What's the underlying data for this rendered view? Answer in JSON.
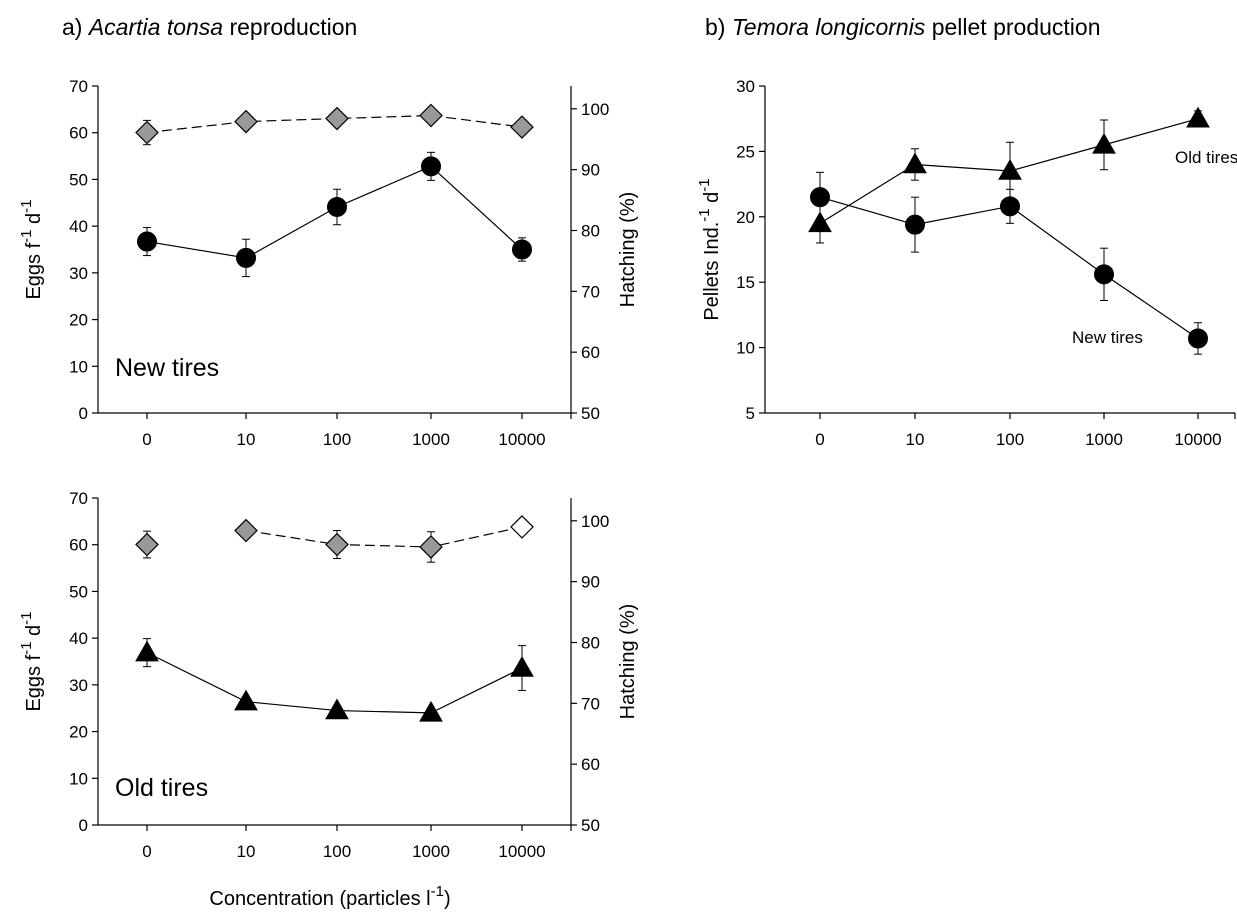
{
  "figure": {
    "panel_a_title": {
      "prefix": "a) ",
      "species": "Acartia tonsa",
      "suffix": " reproduction"
    },
    "panel_b_title": {
      "prefix": "b) ",
      "species": "Temora longicornis",
      "suffix": " pellet production"
    },
    "shared_xlabel": {
      "text": "Concentration (particles l",
      "sup": "-1",
      "close": ")"
    }
  },
  "chart_data": [
    {
      "id": "a-top",
      "type": "line",
      "inset_label": "New tires",
      "categories": [
        "0",
        "10",
        "100",
        "1000",
        "10000"
      ],
      "ylabel_left": {
        "base": "Eggs f",
        "sup1": "-1",
        "mid": " d",
        "sup2": "-1"
      },
      "ylabel_right": "Hatching (%)",
      "ylim_left": [
        0,
        70
      ],
      "yticks_left": [
        0,
        10,
        20,
        30,
        40,
        50,
        60,
        70
      ],
      "ylim_right": [
        50,
        103.75
      ],
      "yticks_right": [
        50,
        60,
        70,
        80,
        90,
        100
      ],
      "series": [
        {
          "axis": "right",
          "marker": "diamond",
          "fill": "#999999",
          "line": "dashed",
          "values": [
            96.1,
            97.9,
            98.4,
            98.9,
            97.0
          ],
          "err": [
            2.0,
            0,
            0,
            0,
            0
          ]
        },
        {
          "axis": "left",
          "marker": "circle",
          "fill": "#000000",
          "line": "solid",
          "values": [
            36.7,
            33.2,
            44.1,
            52.8,
            35.0
          ],
          "err": [
            3.0,
            4.0,
            3.8,
            3.0,
            2.5
          ]
        }
      ]
    },
    {
      "id": "a-bottom",
      "type": "line",
      "inset_label": "Old tires",
      "categories": [
        "0",
        "10",
        "100",
        "1000",
        "10000"
      ],
      "ylabel_left": {
        "base": "Eggs f",
        "sup1": "-1",
        "mid": " d",
        "sup2": "-1"
      },
      "ylabel_right": "Hatching (%)",
      "ylim_left": [
        0,
        70
      ],
      "yticks_left": [
        0,
        10,
        20,
        30,
        40,
        50,
        60,
        70
      ],
      "ylim_right": [
        50,
        103.75
      ],
      "yticks_right": [
        50,
        60,
        70,
        80,
        90,
        100
      ],
      "series": [
        {
          "axis": "right",
          "marker": "diamond",
          "fill": "#999999",
          "line": "dashed",
          "values": [
            96.1,
            98.4,
            96.1,
            95.7,
            99.0
          ],
          "open_last": true,
          "segments": [
            [
              1,
              2,
              3,
              4
            ]
          ],
          "err": [
            2.2,
            0,
            2.3,
            2.5,
            0
          ]
        },
        {
          "axis": "left",
          "marker": "triangle",
          "fill": "#000000",
          "line": "solid",
          "values": [
            36.9,
            26.4,
            24.5,
            24.0,
            33.6
          ],
          "err": [
            3.0,
            0.8,
            0,
            0,
            4.8
          ]
        }
      ]
    },
    {
      "id": "b",
      "type": "line",
      "categories": [
        "0",
        "10",
        "100",
        "1000",
        "10000"
      ],
      "ylabel_left": {
        "base": "Pellets Ind.",
        "sup1": "-1",
        "mid": " d",
        "sup2": "-1"
      },
      "ylim_left": [
        5,
        30
      ],
      "yticks_left": [
        5,
        10,
        15,
        20,
        25,
        30
      ],
      "series": [
        {
          "name": "Old tires",
          "axis": "left",
          "marker": "triangle",
          "fill": "#000000",
          "line": "solid",
          "values": [
            19.5,
            24.0,
            23.5,
            25.5,
            27.5
          ],
          "err": [
            1.5,
            1.2,
            2.2,
            1.9,
            0.6
          ]
        },
        {
          "name": "New tires",
          "axis": "left",
          "marker": "circle",
          "fill": "#000000",
          "line": "solid",
          "values": [
            21.5,
            19.4,
            20.8,
            15.6,
            10.7
          ],
          "err": [
            1.9,
            2.1,
            1.3,
            2.0,
            1.2
          ]
        }
      ]
    }
  ]
}
